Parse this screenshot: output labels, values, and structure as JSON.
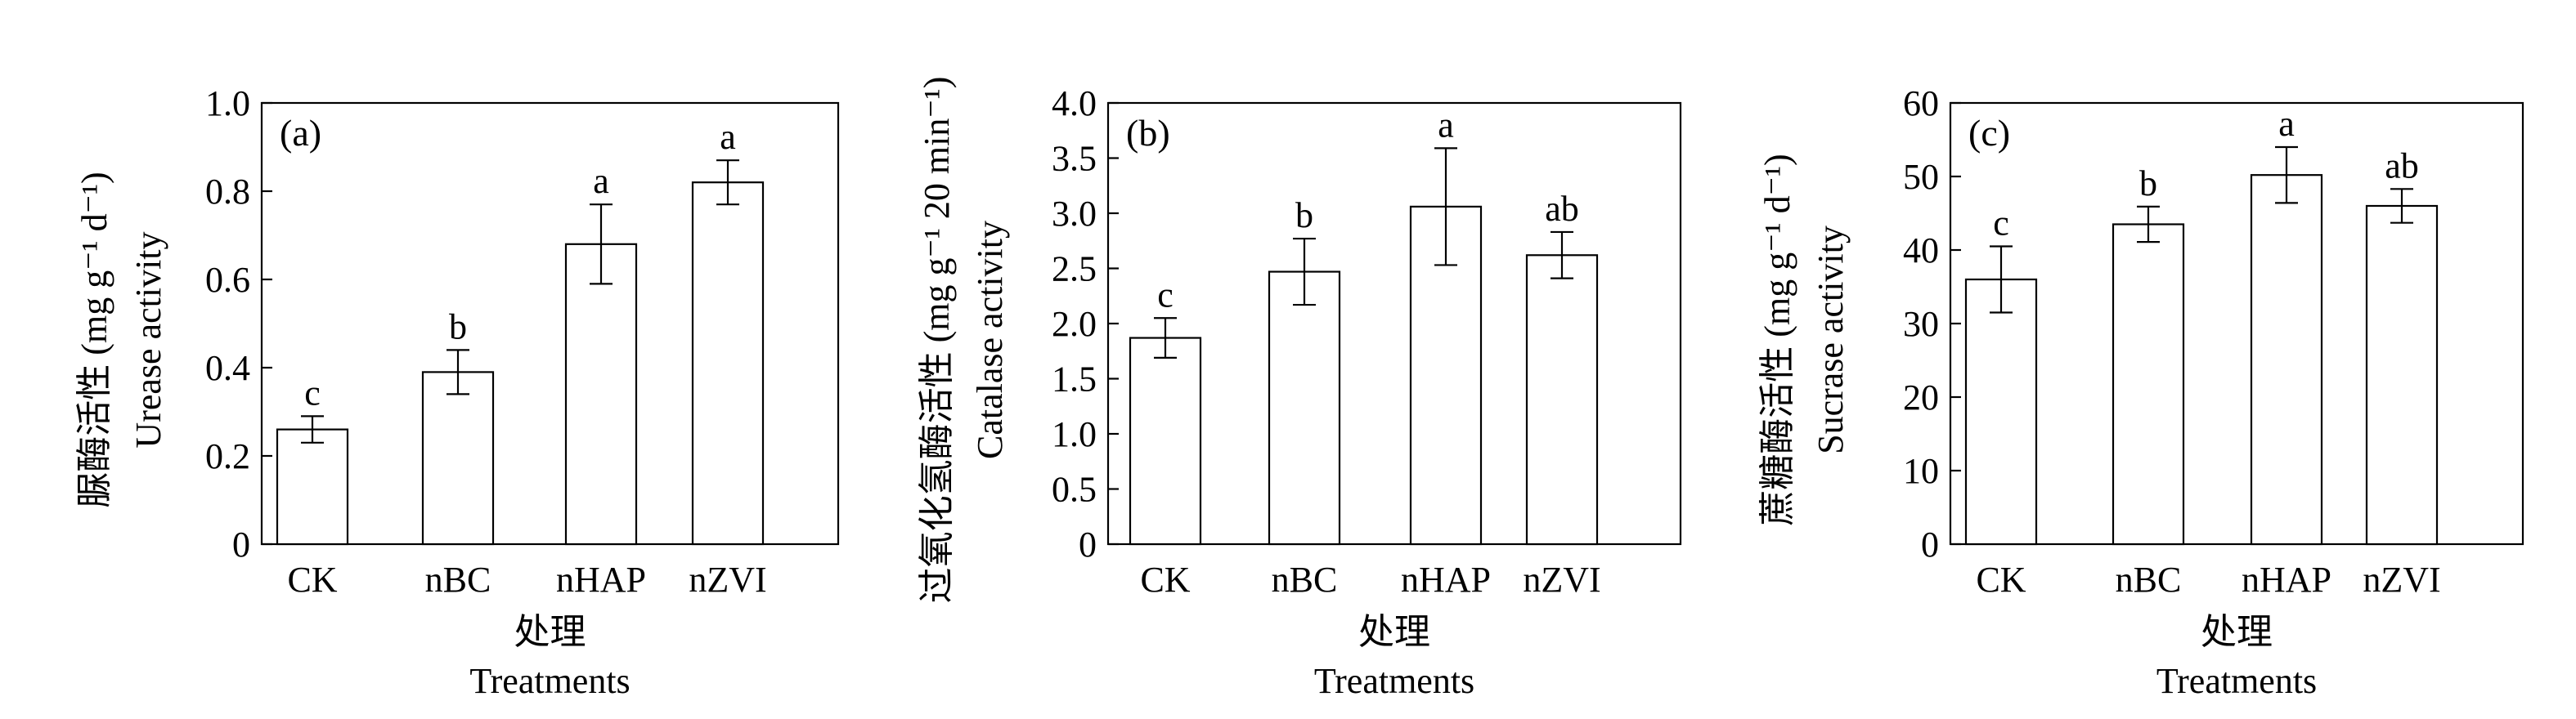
{
  "chart_data": [
    {
      "type": "bar",
      "panel_label": "(a)",
      "categories": [
        "CK",
        "nBC",
        "nHAP",
        "nZVI"
      ],
      "values": [
        0.26,
        0.39,
        0.68,
        0.82
      ],
      "errors": [
        0.03,
        0.05,
        0.09,
        0.05
      ],
      "significance": [
        "c",
        "b",
        "a",
        "a"
      ],
      "ylabel_zh": "脲酶活性 (mg g⁻¹ d⁻¹)",
      "ylabel_en": "Urease activity",
      "xlabel_zh": "处理",
      "xlabel_en": "Treatments",
      "ylim": [
        0,
        1.0
      ],
      "yticks": [
        0,
        0.2,
        0.4,
        0.6,
        0.8,
        1.0
      ],
      "ytick_labels": [
        "0",
        "0.2",
        "0.4",
        "0.6",
        "0.8",
        "1.0"
      ]
    },
    {
      "type": "bar",
      "panel_label": "(b)",
      "categories": [
        "CK",
        "nBC",
        "nHAP",
        "nZVI"
      ],
      "values": [
        1.87,
        2.47,
        3.06,
        2.62
      ],
      "errors": [
        0.18,
        0.3,
        0.53,
        0.21
      ],
      "significance": [
        "c",
        "b",
        "a",
        "ab"
      ],
      "ylabel_zh": "过氧化氢酶活性 (mg g⁻¹ 20 min⁻¹)",
      "ylabel_en": "Catalase activity",
      "xlabel_zh": "处理",
      "xlabel_en": "Treatments",
      "ylim": [
        0,
        4.0
      ],
      "yticks": [
        0,
        0.5,
        1.0,
        1.5,
        2.0,
        2.5,
        3.0,
        3.5,
        4.0
      ],
      "ytick_labels": [
        "0",
        "0.5",
        "1.0",
        "1.5",
        "2.0",
        "2.5",
        "3.0",
        "3.5",
        "4.0"
      ]
    },
    {
      "type": "bar",
      "panel_label": "(c)",
      "categories": [
        "CK",
        "nBC",
        "nHAP",
        "nZVI"
      ],
      "values": [
        36,
        43.5,
        50.2,
        46
      ],
      "errors": [
        4.5,
        2.4,
        3.8,
        2.3
      ],
      "significance": [
        "c",
        "b",
        "a",
        "ab"
      ],
      "ylabel_zh": "蔗糖酶活性 (mg g⁻¹ d⁻¹)",
      "ylabel_en": "Sucrase activity",
      "xlabel_zh": "处理",
      "xlabel_en": "Treatments",
      "ylim": [
        0,
        60
      ],
      "yticks": [
        0,
        10,
        20,
        30,
        40,
        50,
        60
      ],
      "ytick_labels": [
        "0",
        "10",
        "20",
        "30",
        "40",
        "50",
        "60"
      ]
    }
  ]
}
